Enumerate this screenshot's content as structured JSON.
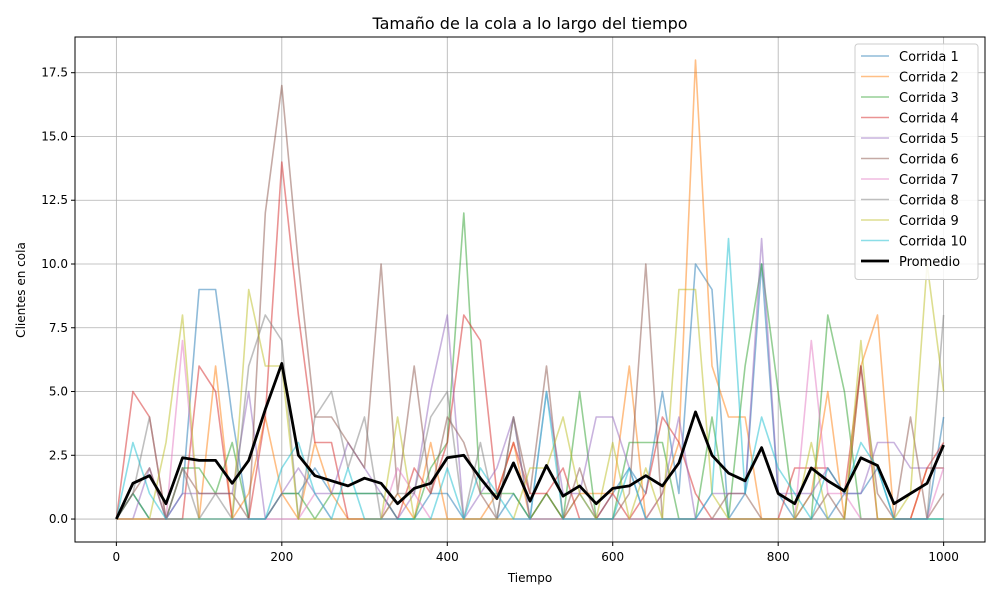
{
  "chart_data": {
    "type": "line",
    "title": "Tamaño de la cola a lo largo del tiempo",
    "xlabel": "Tiempo",
    "ylabel": "Clientes en cola",
    "xlim": [
      -50,
      1050
    ],
    "ylim": [
      -0.9,
      18.9
    ],
    "xticks": [
      0,
      200,
      400,
      600,
      800,
      1000
    ],
    "yticks": [
      0.0,
      2.5,
      5.0,
      7.5,
      10.0,
      12.5,
      15.0,
      17.5
    ],
    "grid": true,
    "legend_position": "top-right",
    "x": [
      0,
      20,
      40,
      60,
      80,
      100,
      120,
      140,
      160,
      180,
      200,
      220,
      240,
      260,
      280,
      300,
      320,
      340,
      360,
      380,
      400,
      420,
      440,
      460,
      480,
      500,
      520,
      540,
      560,
      580,
      600,
      620,
      640,
      660,
      680,
      700,
      720,
      740,
      760,
      780,
      800,
      820,
      840,
      860,
      880,
      900,
      920,
      940,
      960,
      980,
      1000
    ],
    "series": [
      {
        "name": "Corrida 1",
        "color": "#1f77b4",
        "values": [
          0,
          1,
          0,
          0,
          1,
          9,
          9,
          4,
          0,
          0,
          1,
          1,
          2,
          1,
          1,
          1,
          1,
          0,
          0,
          1,
          1,
          0,
          0,
          0,
          1,
          0,
          1,
          0,
          1,
          0,
          1,
          2,
          1,
          5,
          1,
          10,
          9,
          0,
          1,
          10,
          1,
          0,
          1,
          0,
          1,
          1,
          2,
          0,
          0,
          0,
          4
        ]
      },
      {
        "name": "Corrida 2",
        "color": "#ff7f0e",
        "values": [
          0,
          0,
          0,
          0,
          0,
          0,
          6,
          0,
          1,
          4,
          1,
          0,
          3,
          1,
          0,
          0,
          0,
          1,
          0,
          3,
          0,
          0,
          0,
          1,
          3,
          0,
          1,
          0,
          1,
          1,
          1,
          6,
          0,
          1,
          3,
          18,
          6,
          4,
          4,
          0,
          0,
          0,
          1,
          5,
          0,
          6,
          8,
          0,
          0,
          2,
          2
        ]
      },
      {
        "name": "Corrida 3",
        "color": "#2ca02c",
        "values": [
          0,
          1,
          0,
          0,
          2,
          2,
          1,
          3,
          0,
          0,
          1,
          1,
          0,
          1,
          1,
          1,
          1,
          0,
          0,
          2,
          3,
          12,
          1,
          1,
          1,
          0,
          1,
          0,
          5,
          0,
          0,
          3,
          3,
          3,
          0,
          0,
          4,
          0,
          6,
          10,
          5,
          0,
          0,
          8,
          5,
          0,
          0,
          0,
          0,
          0,
          0
        ]
      },
      {
        "name": "Corrida 4",
        "color": "#d62728",
        "values": [
          0,
          5,
          4,
          0,
          0,
          6,
          5,
          0,
          0,
          4,
          14,
          8,
          3,
          3,
          0,
          0,
          0,
          0,
          2,
          1,
          3,
          8,
          7,
          1,
          3,
          1,
          1,
          2,
          0,
          0,
          1,
          0,
          1,
          4,
          3,
          1,
          0,
          0,
          0,
          0,
          0,
          2,
          2,
          2,
          1,
          6,
          0,
          0,
          0,
          2,
          3
        ]
      },
      {
        "name": "Corrida 5",
        "color": "#9467bd",
        "values": [
          0,
          0,
          2,
          0,
          1,
          1,
          1,
          1,
          5,
          0,
          1,
          2,
          1,
          1,
          3,
          2,
          1,
          0,
          1,
          5,
          8,
          0,
          1,
          2,
          4,
          0,
          5,
          1,
          1,
          4,
          4,
          2,
          0,
          1,
          4,
          0,
          1,
          1,
          1,
          11,
          1,
          1,
          1,
          2,
          1,
          1,
          3,
          3,
          2,
          2,
          2
        ]
      },
      {
        "name": "Corrida 6",
        "color": "#8c564b",
        "values": [
          0,
          1,
          2,
          0,
          2,
          1,
          1,
          1,
          0,
          12,
          17,
          10,
          4,
          4,
          3,
          2,
          10,
          1,
          6,
          1,
          4,
          3,
          1,
          0,
          4,
          1,
          6,
          0,
          2,
          0,
          0,
          1,
          10,
          0,
          0,
          0,
          0,
          1,
          1,
          0,
          0,
          0,
          0,
          1,
          0,
          6,
          1,
          0,
          4,
          0,
          1
        ]
      },
      {
        "name": "Corrida 7",
        "color": "#e377c2",
        "values": [
          0,
          0,
          0,
          0,
          7,
          0,
          0,
          0,
          0,
          0,
          0,
          0,
          1,
          0,
          0,
          0,
          0,
          2,
          1,
          0,
          0,
          0,
          0,
          0,
          0,
          0,
          0,
          0,
          0,
          0,
          0,
          0,
          0,
          0,
          0,
          0,
          0,
          0,
          0,
          0,
          0,
          0,
          7,
          1,
          1,
          0,
          0,
          0,
          0,
          0,
          2
        ]
      },
      {
        "name": "Corrida 8",
        "color": "#7f7f7f",
        "values": [
          0,
          1,
          4,
          0,
          2,
          0,
          1,
          0,
          6,
          8,
          7,
          0,
          4,
          5,
          2,
          4,
          0,
          1,
          1,
          4,
          5,
          0,
          3,
          0,
          4,
          0,
          0,
          0,
          0,
          0,
          0,
          0,
          0,
          0,
          0,
          0,
          0,
          0,
          0,
          0,
          0,
          0,
          0,
          0,
          0,
          0,
          0,
          0,
          0,
          0,
          8
        ]
      },
      {
        "name": "Corrida 9",
        "color": "#bcbd22",
        "values": [
          0,
          0,
          0,
          3,
          8,
          0,
          0,
          0,
          9,
          6,
          6,
          0,
          0,
          0,
          0,
          0,
          0,
          4,
          0,
          0,
          0,
          0,
          0,
          0,
          0,
          2,
          2,
          4,
          1,
          0,
          3,
          0,
          2,
          0,
          9,
          9,
          1,
          0,
          0,
          0,
          0,
          0,
          3,
          0,
          0,
          7,
          0,
          0,
          1,
          10,
          5
        ]
      },
      {
        "name": "Corrida 10",
        "color": "#17becf",
        "values": [
          0,
          3,
          1,
          0,
          0,
          0,
          0,
          0,
          0,
          0,
          2,
          3,
          1,
          0,
          2,
          0,
          0,
          0,
          0,
          0,
          2,
          0,
          2,
          1,
          0,
          0,
          5,
          0,
          0,
          0,
          0,
          2,
          0,
          0,
          0,
          0,
          1,
          11,
          1,
          4,
          2,
          1,
          0,
          2,
          1,
          3,
          2,
          0,
          0,
          0,
          0
        ]
      },
      {
        "name": "Promedio",
        "color": "#000000",
        "values": [
          0,
          1.4,
          1.7,
          0.6,
          2.4,
          2.3,
          2.3,
          1.4,
          2.3,
          4.3,
          6.1,
          2.5,
          1.7,
          1.5,
          1.3,
          1.6,
          1.4,
          0.6,
          1.2,
          1.4,
          2.4,
          2.5,
          1.6,
          0.8,
          2.2,
          0.7,
          2.1,
          0.9,
          1.3,
          0.6,
          1.2,
          1.3,
          1.7,
          1.3,
          2.2,
          4.2,
          2.5,
          1.8,
          1.5,
          2.8,
          1.0,
          0.6,
          2.0,
          1.5,
          1.1,
          2.4,
          2.1,
          0.6,
          1.0,
          1.4,
          2.9
        ]
      }
    ]
  }
}
